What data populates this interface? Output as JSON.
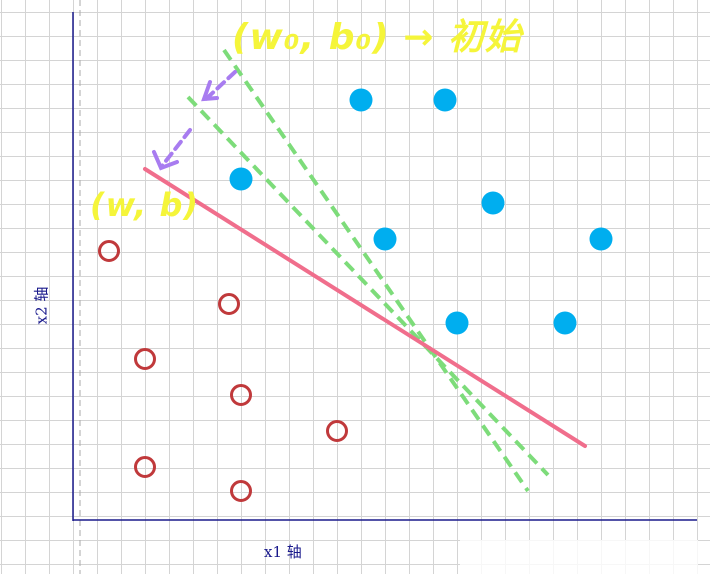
{
  "axes": {
    "x_label": "x1 轴",
    "y_label": "x2 轴"
  },
  "annotations": {
    "initial": "(w₀, b₀) → 初始",
    "updated": "(w, b)"
  },
  "colors": {
    "positive": "#00aeef",
    "negative": "#c0393b",
    "final_line": "#f06e8c",
    "initial_lines": "#7ddc7a",
    "update_arrow": "#a87cf0",
    "annotation": "#f5f53a",
    "axis": "#1a1a8c"
  },
  "points": {
    "positive_class": "filled blue dots",
    "negative_class": "hollow red circles"
  }
}
